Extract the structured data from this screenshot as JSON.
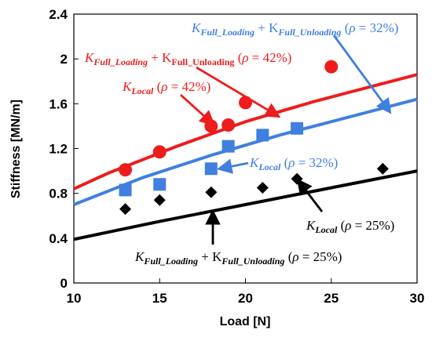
{
  "chart_data": {
    "type": "scatter",
    "xlabel": "Load [N]",
    "ylabel": "Stiffness [MN/m]",
    "xlim": [
      10,
      30
    ],
    "ylim": [
      0,
      2.4
    ],
    "xticks": [
      10,
      15,
      20,
      25,
      30
    ],
    "yticks": [
      0,
      0.4,
      0.8,
      1.2,
      1.6,
      2,
      2.4
    ],
    "ytick_labels": [
      "0",
      "0.4",
      "0.8",
      "1.2",
      "1.6",
      "2",
      "2.4"
    ],
    "grid": false,
    "series": [
      {
        "kind": "points",
        "marker": "circle",
        "color": "#ee1c1c",
        "x": [
          13,
          15,
          18,
          19,
          20,
          25
        ],
        "y": [
          1.01,
          1.17,
          1.4,
          1.41,
          1.61,
          1.93
        ]
      },
      {
        "kind": "points",
        "marker": "square",
        "color": "#3f7fe0",
        "x": [
          13,
          15,
          18,
          19,
          21,
          23
        ],
        "y": [
          0.83,
          0.88,
          1.02,
          1.22,
          1.32,
          1.38
        ]
      },
      {
        "kind": "points",
        "marker": "diamond",
        "color": "#000000",
        "x": [
          13,
          15,
          18,
          21,
          23,
          28
        ],
        "y": [
          0.66,
          0.74,
          0.81,
          0.85,
          0.93,
          1.02
        ]
      },
      {
        "kind": "line",
        "color": "#ee1c1c",
        "x": [
          10,
          12,
          14,
          16,
          18,
          20,
          22,
          24,
          26,
          28,
          30
        ],
        "y": [
          0.84,
          0.98,
          1.1,
          1.22,
          1.33,
          1.44,
          1.53,
          1.62,
          1.7,
          1.78,
          1.86
        ]
      },
      {
        "kind": "line",
        "color": "#3f7fe0",
        "x": [
          10,
          12,
          14,
          16,
          18,
          20,
          22,
          24,
          26,
          28,
          30
        ],
        "y": [
          0.7,
          0.82,
          0.94,
          1.04,
          1.14,
          1.23,
          1.32,
          1.4,
          1.48,
          1.56,
          1.64
        ]
      },
      {
        "kind": "line",
        "color": "#000000",
        "x": [
          10,
          15,
          20,
          25,
          30
        ],
        "y": [
          0.39,
          0.55,
          0.7,
          0.85,
          1.0
        ]
      }
    ],
    "annotations": [
      {
        "color": "#ee1c1c",
        "parts": [
          {
            "t": "K",
            "i": true
          },
          {
            "t": "Full_Loading",
            "i": true,
            "sub": true
          },
          {
            "t": " + K"
          },
          {
            "t": "Full_Unloading",
            "sub": true
          },
          {
            "t": " ("
          },
          {
            "t": "ρ",
            "i": true
          },
          {
            "t": " = 42%)"
          }
        ],
        "arrow_to": [
          21.9,
          1.49
        ]
      },
      {
        "color": "#ee1c1c",
        "parts": [
          {
            "t": "K",
            "i": true
          },
          {
            "t": "Local",
            "i": true,
            "sub": true
          },
          {
            "t": " ("
          },
          {
            "t": "ρ",
            "i": true
          },
          {
            "t": " = 42%)"
          }
        ],
        "arrow_to": [
          18.1,
          1.42
        ]
      },
      {
        "color": "#3f7fe0",
        "parts": [
          {
            "t": "K",
            "i": true
          },
          {
            "t": "Full_Loading",
            "i": true,
            "sub": true
          },
          {
            "t": " + K"
          },
          {
            "t": "Full_Unloading",
            "i": true,
            "sub": true
          },
          {
            "t": " ("
          },
          {
            "t": "ρ",
            "i": true
          },
          {
            "t": " = 32%)"
          }
        ],
        "arrow_to": [
          28.4,
          1.53
        ]
      },
      {
        "color": "#3f7fe0",
        "parts": [
          {
            "t": "K",
            "i": true
          },
          {
            "t": "Local",
            "i": true,
            "sub": true
          },
          {
            "t": " ("
          },
          {
            "t": "ρ",
            "i": true
          },
          {
            "t": " = 32%)"
          }
        ],
        "arrow_to": [
          18.5,
          1.02
        ]
      },
      {
        "color": "#000000",
        "parts": [
          {
            "t": "K",
            "i": true
          },
          {
            "t": "Local",
            "i": true,
            "sub": true
          },
          {
            "t": " ("
          },
          {
            "t": "ρ",
            "i": true
          },
          {
            "t": " = 25%)"
          }
        ],
        "arrow_to": [
          23.1,
          0.91
        ]
      },
      {
        "color": "#000000",
        "parts": [
          {
            "t": "K",
            "i": true
          },
          {
            "t": "Full_Loading",
            "i": true,
            "sub": true
          },
          {
            "t": " + K"
          },
          {
            "t": "Full_Unloading",
            "i": true,
            "sub": true
          },
          {
            "t": " ("
          },
          {
            "t": "ρ",
            "i": true
          },
          {
            "t": " = 25%)"
          }
        ],
        "arrow_to": [
          18.1,
          0.63
        ]
      }
    ]
  }
}
